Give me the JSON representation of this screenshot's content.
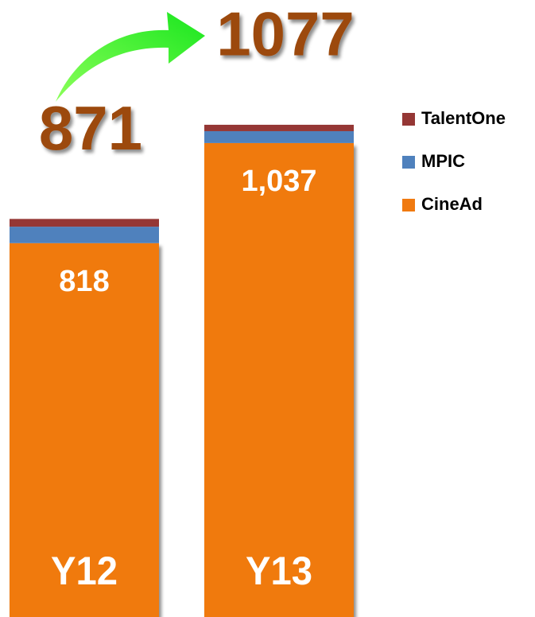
{
  "chart_data": {
    "type": "stacked_bar",
    "categories": [
      "Y12",
      "Y13"
    ],
    "series": [
      {
        "name": "CineAd",
        "color": "#f07a10",
        "values": [
          818,
          1037
        ],
        "value_labels": [
          "818",
          "1,037"
        ]
      },
      {
        "name": "MPIC",
        "color": "#4f81bd",
        "values": [
          36,
          26
        ]
      },
      {
        "name": "TalentOne",
        "color": "#953735",
        "values": [
          17,
          14
        ]
      }
    ],
    "total_labels": [
      "871",
      "1077"
    ],
    "ylim": [
      0,
      1350
    ],
    "legend": "right"
  }
}
